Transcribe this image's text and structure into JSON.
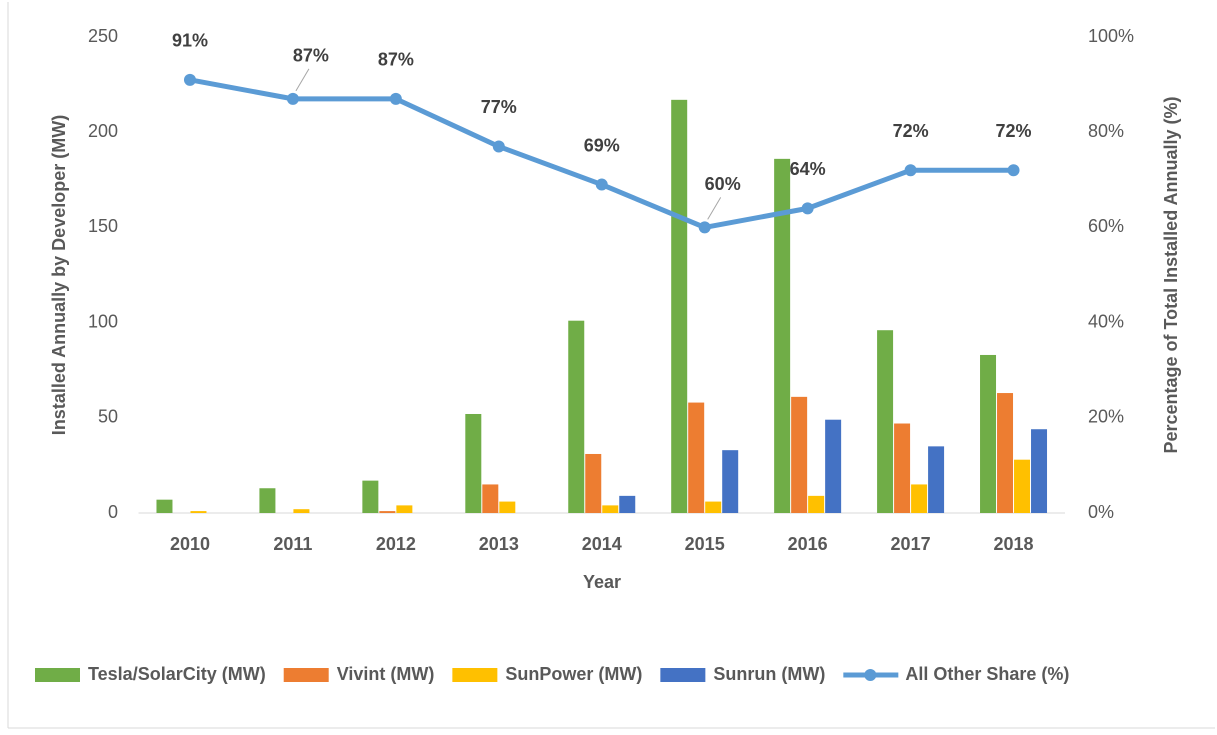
{
  "chart_data": {
    "type": "bar",
    "xlabel": "Year",
    "ylabel": "Installed Annually by Developer (MW)",
    "y2label": "Percentage of Total Installed Annually (%)",
    "categories": [
      "2010",
      "2011",
      "2012",
      "2013",
      "2014",
      "2015",
      "2016",
      "2017",
      "2018"
    ],
    "ylim": [
      0,
      250
    ],
    "yticks": [
      0,
      50,
      100,
      150,
      200,
      250
    ],
    "y2lim": [
      0,
      100
    ],
    "y2ticks": [
      {
        "value": 0,
        "label": "0%"
      },
      {
        "value": 20,
        "label": "20%"
      },
      {
        "value": 40,
        "label": "40%"
      },
      {
        "value": 60,
        "label": "60%"
      },
      {
        "value": 80,
        "label": "80%"
      },
      {
        "value": 100,
        "label": "100%"
      }
    ],
    "grid": false,
    "legend": "bottom",
    "series": [
      {
        "name": "Tesla/SolarCity (MW)",
        "type": "bar",
        "color": "#70ad47",
        "values": [
          7,
          13,
          17,
          52,
          101,
          217,
          186,
          96,
          83
        ]
      },
      {
        "name": "Vivint (MW)",
        "type": "bar",
        "color": "#ed7d31",
        "values": [
          0,
          0,
          1,
          15,
          31,
          58,
          61,
          47,
          63
        ]
      },
      {
        "name": "SunPower (MW)",
        "type": "bar",
        "color": "#ffc000",
        "values": [
          1,
          2,
          4,
          6,
          4,
          6,
          9,
          15,
          28
        ]
      },
      {
        "name": "Sunrun (MW)",
        "type": "bar",
        "color": "#4472c4",
        "values": [
          0,
          0,
          0,
          0,
          9,
          33,
          49,
          35,
          44
        ]
      },
      {
        "name": "All Other Share (%)",
        "type": "line",
        "axis": "y2",
        "color": "#5b9bd5",
        "values": [
          91,
          87,
          87,
          77,
          69,
          60,
          64,
          72,
          72
        ],
        "value_labels": [
          "91%",
          "87%",
          "87%",
          "77%",
          "69%",
          "60%",
          "64%",
          "72%",
          "72%"
        ]
      }
    ]
  }
}
